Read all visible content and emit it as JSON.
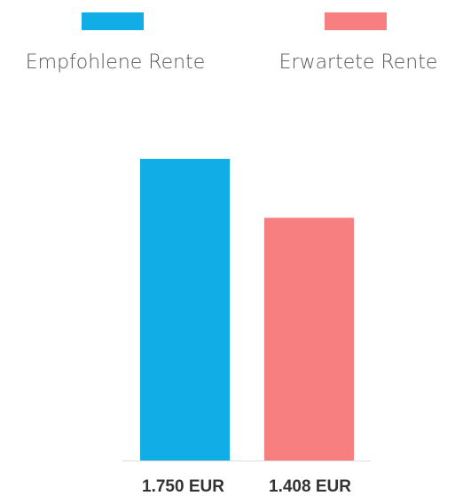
{
  "chart_data": {
    "type": "bar",
    "categories": [
      "Empfohlene Rente",
      "Erwartete Rente"
    ],
    "values": [
      1750,
      1408
    ],
    "value_labels": [
      "1.750 EUR",
      "1.408 EUR"
    ],
    "colors": [
      "#10ade6",
      "#f77f7f"
    ]
  }
}
